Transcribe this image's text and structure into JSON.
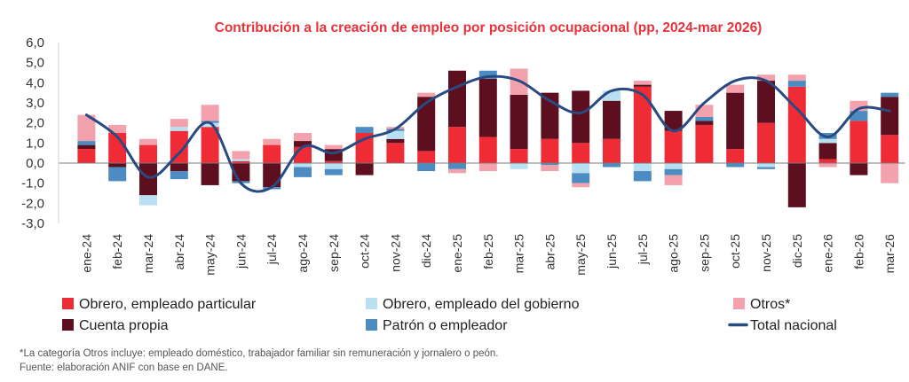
{
  "chart_data": {
    "type": "bar",
    "title": "Contribución a la creación de empleo por posición ocupacional (pp, 2024-mar 2026)",
    "categories": [
      "ene-24",
      "feb-24",
      "mar-24",
      "abr-24",
      "may-24",
      "jun-24",
      "jul-24",
      "ago-24",
      "sep-24",
      "oct-24",
      "nov-24",
      "dic-24",
      "ene-25",
      "feb-25",
      "mar-25",
      "abr-25",
      "may-25",
      "jun-25",
      "jul-25",
      "ago-25",
      "sep-25",
      "oct-25",
      "nov-25",
      "dic-25",
      "ene-26",
      "feb-26",
      "mar-26"
    ],
    "ylim": [
      -3,
      6
    ],
    "yticks": [
      "6,0",
      "5,0",
      "4,0",
      "3,0",
      "2,0",
      "1,0",
      "0,0",
      "-1,0",
      "-2,0",
      "-3,0"
    ],
    "series": [
      {
        "name": "Obrero, empleado particular",
        "kind": "bar",
        "color": "#ef2b36",
        "values": [
          0.7,
          1.5,
          0.9,
          1.6,
          1.8,
          0.1,
          0.9,
          0.8,
          0.1,
          1.5,
          1.0,
          0.6,
          1.8,
          1.3,
          0.7,
          1.2,
          1.0,
          1.2,
          3.8,
          1.6,
          1.9,
          0.7,
          2.0,
          3.8,
          0.2,
          2.1,
          1.4
        ]
      },
      {
        "name": "Cuenta propia",
        "kind": "bar",
        "color": "#5e0f1f",
        "values": [
          0.2,
          -0.2,
          -1.6,
          -0.4,
          -1.1,
          -0.9,
          -1.2,
          0.3,
          0.6,
          -0.6,
          0.2,
          2.7,
          2.8,
          2.9,
          2.7,
          2.3,
          2.6,
          1.9,
          0.1,
          1.0,
          0.2,
          2.8,
          2.1,
          -2.2,
          0.8,
          -0.6,
          1.9
        ]
      },
      {
        "name": "Obrero, empleado del gobierno",
        "kind": "bar",
        "color": "#b9dff2",
        "values": [
          0.0,
          0.0,
          -0.5,
          0.2,
          0.2,
          0.1,
          0.0,
          -0.2,
          -0.3,
          0.0,
          0.4,
          0.0,
          0.0,
          0.0,
          -0.3,
          0.0,
          -0.5,
          0.5,
          -0.4,
          -0.3,
          0.0,
          0.0,
          -0.2,
          0.0,
          0.2,
          0.0,
          0.0
        ]
      },
      {
        "name": "Patrón o empleador",
        "kind": "bar",
        "color": "#4d8cc2",
        "values": [
          0.2,
          -0.7,
          0.0,
          -0.4,
          0.1,
          -0.1,
          -0.1,
          -0.5,
          -0.3,
          0.3,
          0.1,
          -0.4,
          -0.3,
          0.4,
          0.0,
          -0.1,
          -0.5,
          -0.2,
          -0.5,
          -0.3,
          0.2,
          -0.2,
          -0.1,
          0.3,
          0.3,
          0.5,
          0.2
        ]
      },
      {
        "name": "Otros*",
        "kind": "bar",
        "color": "#f3a1ad",
        "values": [
          1.3,
          0.4,
          0.3,
          0.4,
          0.8,
          0.4,
          0.3,
          0.4,
          0.2,
          0.0,
          0.1,
          0.2,
          -0.2,
          -0.4,
          1.3,
          -0.3,
          -0.2,
          0.0,
          0.2,
          -0.5,
          0.6,
          0.4,
          0.3,
          0.3,
          -0.2,
          0.5,
          -1.0
        ]
      },
      {
        "name": "Total nacional",
        "kind": "line",
        "color": "#284a80",
        "values": [
          2.4,
          1.3,
          -0.7,
          0.5,
          2.0,
          -1.0,
          -1.2,
          0.8,
          0.5,
          1.2,
          1.7,
          3.0,
          3.8,
          4.3,
          4.1,
          3.1,
          2.5,
          3.6,
          3.4,
          1.6,
          3.0,
          4.1,
          4.1,
          2.7,
          1.3,
          2.7,
          2.6
        ]
      }
    ],
    "legend_placement": "bottom",
    "grid": false
  },
  "legend": {
    "items": [
      {
        "label": "Obrero, empleado particular",
        "color": "#ef2b36",
        "kind": "box"
      },
      {
        "label": "Obrero, empleado del gobierno",
        "color": "#b9dff2",
        "kind": "box"
      },
      {
        "label": "Otros*",
        "color": "#f3a1ad",
        "kind": "box"
      },
      {
        "label": "Cuenta propia",
        "color": "#5e0f1f",
        "kind": "box"
      },
      {
        "label": "Patrón o empleador",
        "color": "#4d8cc2",
        "kind": "box"
      },
      {
        "label": "Total nacional",
        "color": "#284a80",
        "kind": "line"
      }
    ]
  },
  "footnotes": {
    "note": "*La categoría Otros incluye: empleado doméstico, trabajador familiar sin remuneración y jornalero o peón.",
    "source": "Fuente: elaboración ANIF con base en DANE."
  }
}
